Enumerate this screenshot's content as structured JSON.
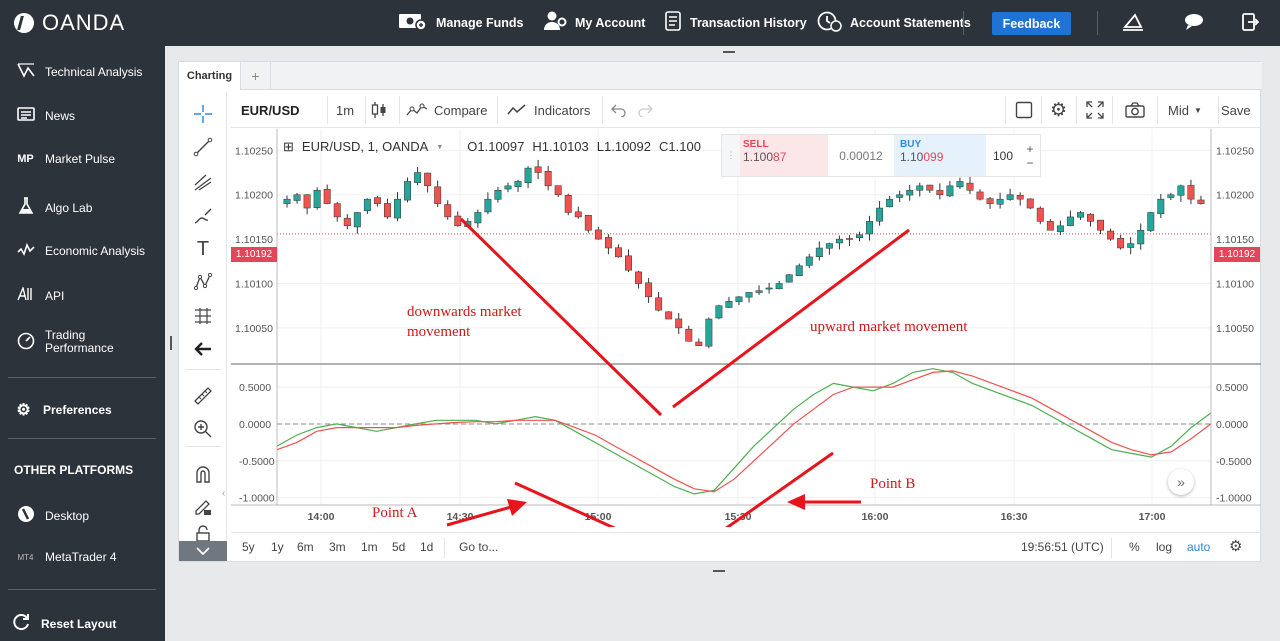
{
  "brand": {
    "name": "OANDA"
  },
  "topnav": {
    "manage_funds": "Manage Funds",
    "my_account": "My Account",
    "transaction_history": "Transaction History",
    "account_statements": "Account Statements",
    "feedback": "Feedback"
  },
  "sidebar": {
    "items": [
      {
        "label": "Technical Analysis",
        "icon": "technical-analysis-icon"
      },
      {
        "label": "News",
        "icon": "news-icon"
      },
      {
        "label": "Market Pulse",
        "icon": "market-pulse-icon"
      },
      {
        "label": "Algo Lab",
        "icon": "flask-icon"
      },
      {
        "label": "Economic Analysis",
        "icon": "economic-analysis-icon"
      },
      {
        "label": "API",
        "icon": "api-icon"
      },
      {
        "label": "Trading\nPerformance",
        "icon": "gauge-icon"
      }
    ],
    "preferences": "Preferences",
    "other_platforms_heading": "OTHER PLATFORMS",
    "desktop": "Desktop",
    "metatrader": "MetaTrader 4",
    "mt4_badge": "MT4",
    "reset_layout": "Reset Layout"
  },
  "chart_panel": {
    "tab_label": "Charting",
    "tab_add": "+",
    "toolbar": {
      "symbol": "EUR/USD",
      "interval": "1m",
      "compare": "Compare",
      "indicators": "Indicators",
      "price_type": "Mid",
      "save": "Save"
    },
    "legend": {
      "title": "EUR/USD, 1, OANDA",
      "open": "O1.10097",
      "high": "H1.10103",
      "low": "L1.10092",
      "close": "C1.100"
    },
    "trade_box": {
      "sell_label": "SELL",
      "sell_price_prefix": "1.100",
      "sell_price_big": "87",
      "spread": "0.00012",
      "buy_label": "BUY",
      "buy_price_prefix": "1.10",
      "buy_price_big": "099",
      "quantity": "100",
      "plus": "+",
      "minus": "−"
    },
    "bottombar": {
      "ranges": [
        "5y",
        "1y",
        "6m",
        "3m",
        "1m",
        "5d",
        "1d"
      ],
      "goto": "Go to...",
      "clock": "19:56:51 (UTC)",
      "percent": "%",
      "log": "log",
      "auto": "auto"
    },
    "annotations": {
      "down_text_1": "downwards market",
      "down_text_2": "movement",
      "up_text": "upward market movement",
      "point_a": "Point A",
      "point_b": "Point B"
    }
  },
  "colors": {
    "up_candle": "#26a69a",
    "down_candle": "#ef5350",
    "annotation": "#e8141b",
    "accent": "#1f73d6",
    "sidebar_bg": "#2c333a"
  },
  "chart_data": {
    "type": "candlestick",
    "price_axis": {
      "ticks": [
        "1.10250",
        "1.10200",
        "1.10150",
        "1.10100",
        "1.10050"
      ],
      "current_price_label": "1.10192",
      "ylim": [
        1.10015,
        1.10265
      ]
    },
    "time_axis": {
      "ticks": [
        "14:00",
        "14:30",
        "15:00",
        "15:30",
        "16:00",
        "16:30",
        "17:00"
      ]
    },
    "oscillator_axis": {
      "ticks": [
        "0.5000",
        "0.0000",
        "-0.5000",
        "-1.0000"
      ],
      "ylim": [
        -1.1,
        0.8
      ]
    },
    "price_close_approx": [
      1.10195,
      1.102,
      1.10185,
      1.10205,
      1.1019,
      1.10175,
      1.10165,
      1.1018,
      1.10195,
      1.1019,
      1.10175,
      1.10195,
      1.10215,
      1.10225,
      1.1021,
      1.1019,
      1.10175,
      1.10165,
      1.1017,
      1.1018,
      1.10195,
      1.10205,
      1.1021,
      1.10215,
      1.1023,
      1.10225,
      1.1021,
      1.102,
      1.1018,
      1.10175,
      1.1016,
      1.1015,
      1.1014,
      1.1013,
      1.10115,
      1.101,
      1.10085,
      1.1007,
      1.1006,
      1.1005,
      1.10035,
      1.1003,
      1.1006,
      1.10075,
      1.1008,
      1.10085,
      1.1009,
      1.10092,
      1.10095,
      1.101,
      1.1011,
      1.1012,
      1.1013,
      1.1014,
      1.10145,
      1.1015,
      1.1015,
      1.10155,
      1.1017,
      1.10185,
      1.10195,
      1.102,
      1.10205,
      1.1021,
      1.10205,
      1.102,
      1.1021,
      1.10215,
      1.10205,
      1.10195,
      1.1019,
      1.10195,
      1.102,
      1.10195,
      1.10185,
      1.1017,
      1.1016,
      1.10165,
      1.10175,
      1.1018,
      1.1017,
      1.1016,
      1.1015,
      1.1014,
      1.10145,
      1.1016,
      1.1018,
      1.10195,
      1.102,
      1.1021,
      1.10195,
      1.1019
    ],
    "series": [
      {
        "name": "green",
        "values": [
          -0.3,
          -0.15,
          -0.05,
          0.0,
          -0.05,
          -0.1,
          -0.05,
          0.0,
          0.05,
          0.05,
          0.05,
          0.0,
          0.05,
          0.1,
          0.05,
          -0.1,
          -0.25,
          -0.4,
          -0.55,
          -0.7,
          -0.85,
          -0.95,
          -0.9,
          -0.6,
          -0.3,
          -0.05,
          0.2,
          0.4,
          0.55,
          0.5,
          0.45,
          0.55,
          0.7,
          0.75,
          0.7,
          0.55,
          0.45,
          0.35,
          0.25,
          0.1,
          -0.05,
          -0.2,
          -0.35,
          -0.4,
          -0.45,
          -0.3,
          -0.05,
          0.15
        ]
      },
      {
        "name": "red",
        "values": [
          -0.35,
          -0.25,
          -0.1,
          -0.05,
          -0.05,
          -0.05,
          -0.05,
          -0.02,
          0.0,
          0.02,
          0.03,
          0.03,
          0.05,
          0.05,
          0.05,
          -0.05,
          -0.15,
          -0.3,
          -0.45,
          -0.6,
          -0.75,
          -0.88,
          -0.92,
          -0.75,
          -0.5,
          -0.25,
          0.0,
          0.2,
          0.4,
          0.5,
          0.5,
          0.5,
          0.6,
          0.7,
          0.72,
          0.65,
          0.55,
          0.45,
          0.35,
          0.2,
          0.05,
          -0.1,
          -0.25,
          -0.35,
          -0.42,
          -0.38,
          -0.2,
          0.0
        ]
      }
    ]
  }
}
